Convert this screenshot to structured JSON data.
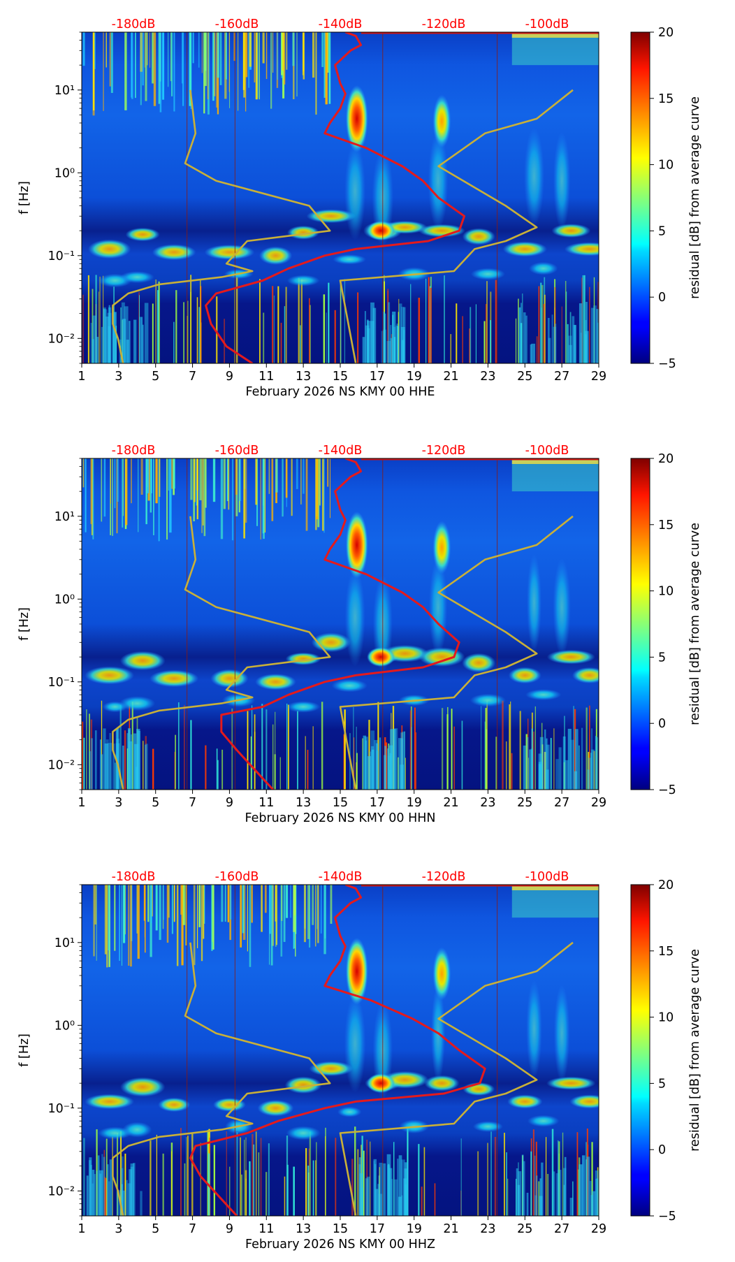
{
  "chart_data": [
    {
      "type": "heatmap",
      "xlabel": "February 2026 NS KMY 00 HHE",
      "ylabel": "f [Hz]",
      "x_ticks": [
        "1",
        "3",
        "5",
        "7",
        "9",
        "11",
        "13",
        "15",
        "17",
        "19",
        "21",
        "23",
        "25",
        "27",
        "29"
      ],
      "x_range": [
        1,
        29
      ],
      "y_ticks": [
        "10⁻²",
        "10⁻¹",
        "10⁰",
        "10¹"
      ],
      "y_range_hz": [
        0.005,
        50
      ],
      "y_scale": "log",
      "db_scale_labels": [
        "-180dB",
        "-160dB",
        "-140dB",
        "-120dB",
        "-100dB"
      ],
      "colorbar": {
        "label": "residual [dB] from average curve",
        "ticks": [
          "−5",
          "0",
          "5",
          "10",
          "15",
          "20"
        ],
        "range": [
          -5,
          20
        ],
        "colormap": "jet"
      },
      "series": [
        {
          "name": "average PSD curve",
          "color": "#e41a1c",
          "points": [
            [
              -139,
              50
            ],
            [
              -137,
              45
            ],
            [
              -136,
              35
            ],
            [
              -138,
              30
            ],
            [
              -141,
              20
            ],
            [
              -140,
              12
            ],
            [
              -139,
              9
            ],
            [
              -140,
              6
            ],
            [
              -142,
              4
            ],
            [
              -143,
              3
            ],
            [
              -135,
              2
            ],
            [
              -128,
              1.2
            ],
            [
              -124,
              0.8
            ],
            [
              -121,
              0.5
            ],
            [
              -116,
              0.3
            ],
            [
              -117,
              0.2
            ],
            [
              -123,
              0.15
            ],
            [
              -137,
              0.12
            ],
            [
              -143,
              0.1
            ],
            [
              -150,
              0.07
            ],
            [
              -155,
              0.05
            ],
            [
              -164,
              0.035
            ],
            [
              -166,
              0.025
            ],
            [
              -165,
              0.015
            ],
            [
              -162,
              0.008
            ],
            [
              -157,
              0.005
            ]
          ]
        },
        {
          "name": "reference model curve",
          "color": "#c9b038",
          "points": [
            [
              -169,
              10
            ],
            [
              -168,
              3
            ],
            [
              -170,
              1.3
            ],
            [
              -164,
              0.8
            ],
            [
              -146,
              0.4
            ],
            [
              -142,
              0.2
            ],
            [
              -158,
              0.15
            ],
            [
              -162,
              0.08
            ],
            [
              -157,
              0.065
            ],
            [
              -163,
              0.055
            ],
            [
              -175,
              0.045
            ],
            [
              -181,
              0.035
            ],
            [
              -184,
              0.025
            ],
            [
              -184,
              0.015
            ],
            [
              -183,
              0.01
            ],
            [
              -182,
              0.005
            ]
          ]
        },
        {
          "name": "reference model curve (high)",
          "color": "#c9b038",
          "points": [
            [
              -137,
              0.005
            ],
            [
              -140,
              0.05
            ],
            [
              -118,
              0.065
            ],
            [
              -114,
              0.12
            ],
            [
              -108,
              0.15
            ],
            [
              -102,
              0.22
            ],
            [
              -108,
              0.4
            ],
            [
              -121,
              1.2
            ],
            [
              -112,
              3
            ],
            [
              -102,
              4.5
            ],
            [
              -95,
              10
            ]
          ]
        }
      ]
    },
    {
      "type": "heatmap",
      "xlabel": "February 2026 NS KMY 00 HHN",
      "ylabel": "f [Hz]",
      "x_ticks": [
        "1",
        "3",
        "5",
        "7",
        "9",
        "11",
        "13",
        "15",
        "17",
        "19",
        "21",
        "23",
        "25",
        "27",
        "29"
      ],
      "x_range": [
        1,
        29
      ],
      "y_ticks": [
        "10⁻²",
        "10⁻¹",
        "10⁰",
        "10¹"
      ],
      "y_range_hz": [
        0.005,
        50
      ],
      "y_scale": "log",
      "db_scale_labels": [
        "-180dB",
        "-160dB",
        "-140dB",
        "-120dB",
        "-100dB"
      ],
      "colorbar": {
        "label": "residual [dB] from average curve",
        "ticks": [
          "−5",
          "0",
          "5",
          "10",
          "15",
          "20"
        ],
        "range": [
          -5,
          20
        ],
        "colormap": "jet"
      },
      "series": [
        {
          "name": "average PSD curve",
          "color": "#e41a1c",
          "points": [
            [
              -139,
              50
            ],
            [
              -137,
              45
            ],
            [
              -136,
              35
            ],
            [
              -138,
              30
            ],
            [
              -141,
              20
            ],
            [
              -140,
              12
            ],
            [
              -139,
              9
            ],
            [
              -140,
              6
            ],
            [
              -142,
              4
            ],
            [
              -143,
              3
            ],
            [
              -135,
              2
            ],
            [
              -128,
              1.2
            ],
            [
              -124,
              0.8
            ],
            [
              -121,
              0.5
            ],
            [
              -117,
              0.3
            ],
            [
              -118,
              0.2
            ],
            [
              -124,
              0.15
            ],
            [
              -137,
              0.12
            ],
            [
              -143,
              0.1
            ],
            [
              -150,
              0.07
            ],
            [
              -155,
              0.05
            ],
            [
              -163,
              0.04
            ],
            [
              -163,
              0.025
            ],
            [
              -160,
              0.015
            ],
            [
              -156,
              0.008
            ],
            [
              -153,
              0.005
            ]
          ]
        },
        {
          "name": "reference model curve",
          "color": "#c9b038",
          "points": [
            [
              -169,
              10
            ],
            [
              -168,
              3
            ],
            [
              -170,
              1.3
            ],
            [
              -164,
              0.8
            ],
            [
              -146,
              0.4
            ],
            [
              -142,
              0.2
            ],
            [
              -158,
              0.15
            ],
            [
              -162,
              0.08
            ],
            [
              -157,
              0.065
            ],
            [
              -163,
              0.055
            ],
            [
              -175,
              0.045
            ],
            [
              -181,
              0.035
            ],
            [
              -184,
              0.025
            ],
            [
              -184,
              0.015
            ],
            [
              -183,
              0.01
            ],
            [
              -182,
              0.005
            ]
          ]
        },
        {
          "name": "reference model curve (high)",
          "color": "#c9b038",
          "points": [
            [
              -137,
              0.005
            ],
            [
              -140,
              0.05
            ],
            [
              -118,
              0.065
            ],
            [
              -114,
              0.12
            ],
            [
              -108,
              0.15
            ],
            [
              -102,
              0.22
            ],
            [
              -108,
              0.4
            ],
            [
              -121,
              1.2
            ],
            [
              -112,
              3
            ],
            [
              -102,
              4.5
            ],
            [
              -95,
              10
            ]
          ]
        }
      ]
    },
    {
      "type": "heatmap",
      "xlabel": "February 2026 NS KMY 00 HHZ",
      "ylabel": "f [Hz]",
      "x_ticks": [
        "1",
        "3",
        "5",
        "7",
        "9",
        "11",
        "13",
        "15",
        "17",
        "19",
        "21",
        "23",
        "25",
        "27",
        "29"
      ],
      "x_range": [
        1,
        29
      ],
      "y_ticks": [
        "10⁻²",
        "10⁻¹",
        "10⁰",
        "10¹"
      ],
      "y_range_hz": [
        0.005,
        50
      ],
      "y_scale": "log",
      "db_scale_labels": [
        "-180dB",
        "-160dB",
        "-140dB",
        "-120dB",
        "-100dB"
      ],
      "colorbar": {
        "label": "residual [dB] from average curve",
        "ticks": [
          "−5",
          "0",
          "5",
          "10",
          "15",
          "20"
        ],
        "range": [
          -5,
          20
        ],
        "colormap": "jet"
      },
      "series": [
        {
          "name": "average PSD curve",
          "color": "#e41a1c",
          "points": [
            [
              -139,
              50
            ],
            [
              -137,
              45
            ],
            [
              -136,
              35
            ],
            [
              -138,
              30
            ],
            [
              -141,
              20
            ],
            [
              -140,
              12
            ],
            [
              -139,
              9
            ],
            [
              -140,
              6
            ],
            [
              -142,
              4
            ],
            [
              -143,
              3
            ],
            [
              -134,
              2
            ],
            [
              -126,
              1.2
            ],
            [
              -121,
              0.8
            ],
            [
              -117,
              0.5
            ],
            [
              -112,
              0.3
            ],
            [
              -113,
              0.2
            ],
            [
              -120,
              0.15
            ],
            [
              -137,
              0.12
            ],
            [
              -143,
              0.1
            ],
            [
              -152,
              0.07
            ],
            [
              -158,
              0.05
            ],
            [
              -168,
              0.035
            ],
            [
              -169,
              0.025
            ],
            [
              -167,
              0.015
            ],
            [
              -163,
              0.008
            ],
            [
              -160,
              0.005
            ]
          ]
        },
        {
          "name": "reference model curve",
          "color": "#c9b038",
          "points": [
            [
              -169,
              10
            ],
            [
              -168,
              3
            ],
            [
              -170,
              1.3
            ],
            [
              -164,
              0.8
            ],
            [
              -146,
              0.4
            ],
            [
              -142,
              0.2
            ],
            [
              -158,
              0.15
            ],
            [
              -162,
              0.08
            ],
            [
              -157,
              0.065
            ],
            [
              -163,
              0.055
            ],
            [
              -175,
              0.045
            ],
            [
              -181,
              0.035
            ],
            [
              -184,
              0.025
            ],
            [
              -184,
              0.015
            ],
            [
              -183,
              0.01
            ],
            [
              -182,
              0.005
            ]
          ]
        },
        {
          "name": "reference model curve (high)",
          "color": "#c9b038",
          "points": [
            [
              -137,
              0.005
            ],
            [
              -140,
              0.05
            ],
            [
              -118,
              0.065
            ],
            [
              -114,
              0.12
            ],
            [
              -108,
              0.15
            ],
            [
              -102,
              0.22
            ],
            [
              -108,
              0.4
            ],
            [
              -121,
              1.2
            ],
            [
              -112,
              3
            ],
            [
              -102,
              4.5
            ],
            [
              -95,
              10
            ]
          ]
        }
      ]
    }
  ]
}
